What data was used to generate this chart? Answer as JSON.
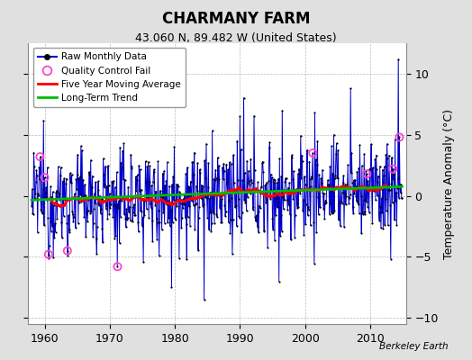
{
  "title": "CHARMANY FARM",
  "subtitle": "43.060 N, 89.482 W (United States)",
  "ylabel": "Temperature Anomaly (°C)",
  "credit": "Berkeley Earth",
  "xlim": [
    1957.5,
    2015.5
  ],
  "ylim": [
    -10.5,
    12.5
  ],
  "yticks": [
    -10,
    -5,
    0,
    5,
    10
  ],
  "xticks": [
    1960,
    1970,
    1980,
    1990,
    2000,
    2010
  ],
  "bg_color": "#e0e0e0",
  "plot_bg_color": "#ffffff",
  "raw_line_color": "#0000cc",
  "raw_dot_color": "#000000",
  "moving_avg_color": "#ff0000",
  "trend_color": "#00bb00",
  "qc_fail_color": "#ff44cc",
  "seed": 12345,
  "n_years": 57,
  "start_year": 1958.0
}
